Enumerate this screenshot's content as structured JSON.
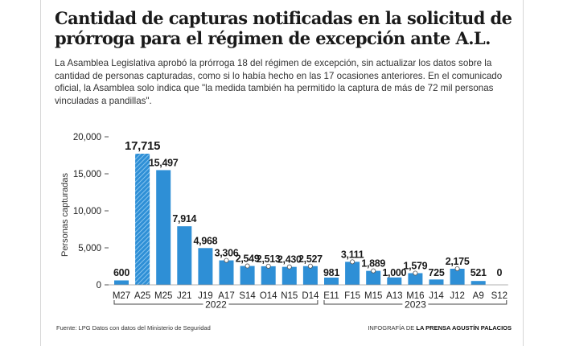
{
  "header": {
    "title": "Cantidad de capturas notificadas en la solicitud de prórroga para el régimen de excepción ante A.L.",
    "description": "La Asamblea Legislativa aprobó la prórroga 18 del régimen de excepción, sin actualizar los datos sobre la cantidad de personas capturadas, como si lo había hecho en las 17 ocasiones anteriores. En el comunicado oficial, la Asamblea solo indica que \"la medida también ha permitido la captura de más de 72 mil personas vinculadas a pandillas\"."
  },
  "footer": {
    "source": "Fuente: LPG Datos con datos del Ministerio de Seguridad",
    "credit_prefix": "INFOGRAFÍA DE",
    "credit_name": "LA PRENSA AGUSTÍN PALACIOS"
  },
  "colors": {
    "bar": "#2e8fd6",
    "bar_highlight": "#2e8fd6",
    "text": "#222222",
    "axis": "#333333"
  },
  "chart_data": {
    "type": "bar",
    "title": "Cantidad de capturas notificadas en la solicitud de prórroga para el régimen de excepción ante A.L.",
    "xlabel": "",
    "ylabel": "Personas capturadas",
    "ylim": [
      0,
      20000
    ],
    "yticks": [
      0,
      5000,
      10000,
      15000,
      20000
    ],
    "ytick_labels": [
      "0",
      "5,000",
      "10,000",
      "15,000",
      "20,000"
    ],
    "grid": false,
    "categories": [
      "M27",
      "A25",
      "M25",
      "J21",
      "J19",
      "A17",
      "S14",
      "O14",
      "N15",
      "D14",
      "E11",
      "F15",
      "M15",
      "A13",
      "M16",
      "J14",
      "J12",
      "A9",
      "S12"
    ],
    "values": [
      600,
      17715,
      15497,
      7914,
      4968,
      3306,
      2549,
      2513,
      2430,
      2527,
      981,
      3111,
      1889,
      1000,
      1579,
      725,
      2175,
      521,
      0
    ],
    "value_labels": [
      "600",
      "17,715",
      "15,497",
      "7,914",
      "4,968",
      "3,306",
      "2,549",
      "2,513",
      "2,430",
      "2,527",
      "981",
      "3,111",
      "1,889",
      "1,000",
      "1,579",
      "725",
      "2,175",
      "521",
      "0"
    ],
    "highlight_index": 1,
    "groups": [
      {
        "label": "2022",
        "start": 0,
        "end": 9
      },
      {
        "label": "2023",
        "start": 10,
        "end": 18
      }
    ]
  }
}
